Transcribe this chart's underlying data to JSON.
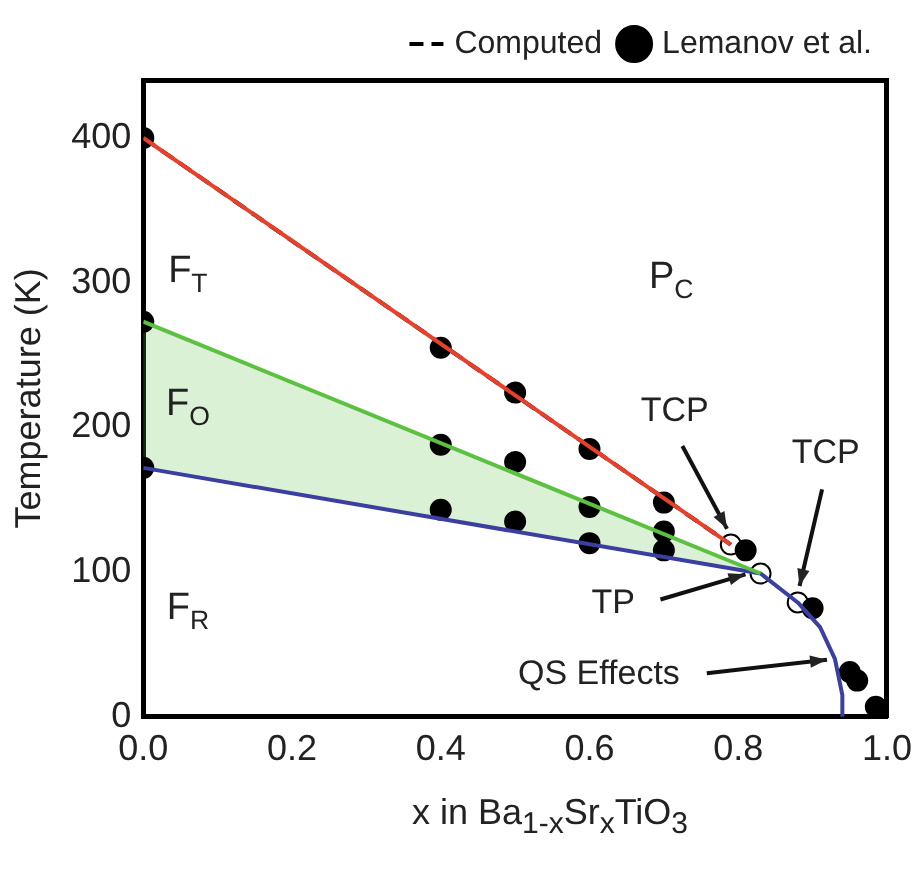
{
  "chart_data": {
    "type": "line",
    "xlabel": "x in Ba$_{1-x}$Sr$_{x}$TiO$_{3}$",
    "ylabel": "Temperature (K)",
    "xlim": [
      0,
      1
    ],
    "ylim": [
      0,
      440
    ],
    "xticks": [
      {
        "value": 0,
        "label": "0.0"
      },
      {
        "value": 0.2,
        "label": "0.2"
      },
      {
        "value": 0.4,
        "label": "0.4"
      },
      {
        "value": 0.6,
        "label": "0.6"
      },
      {
        "value": 0.8,
        "label": "0.8"
      },
      {
        "value": 1,
        "label": "1.0"
      }
    ],
    "yticks": [
      0,
      100,
      200,
      300,
      400
    ],
    "grid": false,
    "legend": "top right",
    "series": [
      {
        "color": "#e8402a",
        "x": [
          0,
          0.79
        ],
        "values": [
          400,
          119
        ],
        "line_style": "solid",
        "marker": "none"
      },
      {
        "color": "#5cc040",
        "x": [
          0,
          0.83
        ],
        "values": [
          273,
          99
        ],
        "line_style": "solid",
        "marker": "none"
      },
      {
        "color": "#3a3fa0",
        "x": [
          0,
          0.83,
          0.88,
          0.91,
          0.93,
          0.94,
          0.94
        ],
        "values": [
          172,
          99,
          79,
          62,
          40,
          15,
          0
        ],
        "line_style": "solid",
        "marker": "none"
      },
      {
        "name": "Computed",
        "color": "#000000",
        "x": [
          0,
          0.79
        ],
        "values": [
          400,
          119
        ],
        "line_style": "dashed",
        "marker": "none"
      },
      {
        "type": "scatter",
        "name": "Lemanov et al.",
        "color": "#000000",
        "marker": "circle",
        "x": [
          0,
          0,
          0,
          0.4,
          0.4,
          0.4,
          0.5,
          0.5,
          0.5,
          0.6,
          0.6,
          0.6,
          0.7,
          0.7,
          0.7,
          0.81,
          0.9,
          0.95,
          0.96,
          0.985
        ],
        "values": [
          400,
          273,
          172,
          255,
          188,
          143,
          224,
          176,
          135,
          185,
          145,
          120,
          148,
          128,
          115,
          115,
          75,
          31,
          25,
          7
        ]
      },
      {
        "type": "scatter",
        "color": "#ffffff",
        "marker": "circle",
        "x": [
          0.79,
          0.83,
          0.88
        ],
        "values": [
          119,
          99,
          79
        ]
      }
    ],
    "annotations": [
      "F$_{T}$",
      "P$_{C}$",
      "F$_{O}$",
      "F$_{R}$",
      {
        "text": "TCP",
        "x": 0.79,
        "y": 125
      },
      {
        "text": "TCP",
        "x": 0.88,
        "y": 85
      },
      {
        "text": "TP",
        "x": 0.82,
        "y": 100
      },
      {
        "text": "QS Effects",
        "x": 0.93,
        "y": 40
      }
    ]
  }
}
